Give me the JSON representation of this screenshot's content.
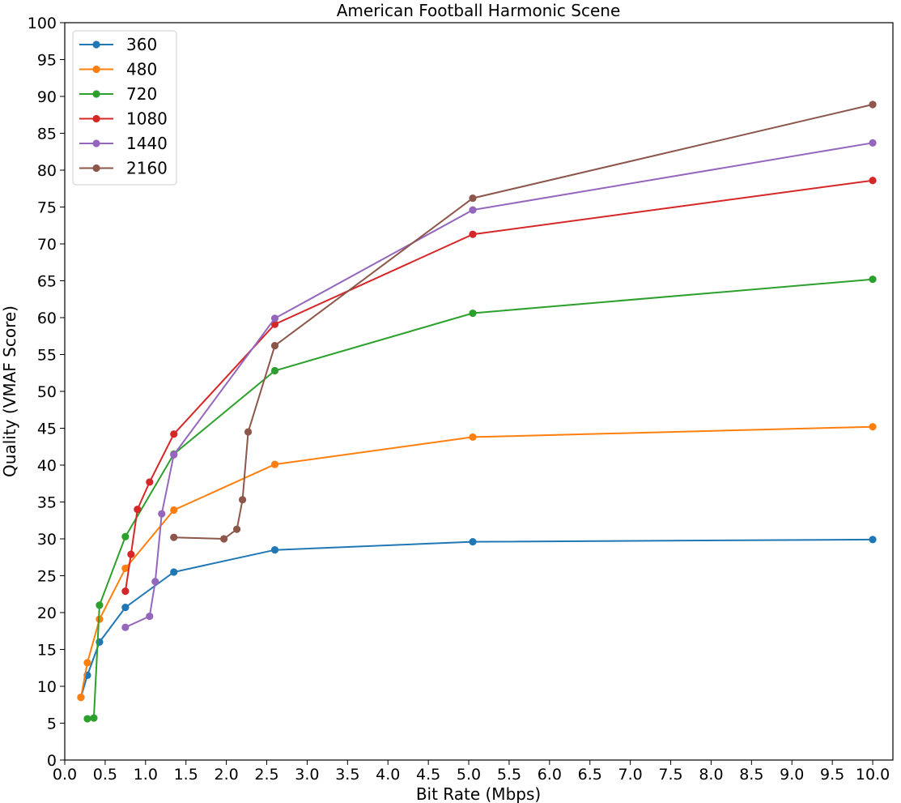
{
  "chart_data": {
    "type": "line",
    "title": "American Football Harmonic Scene",
    "xlabel": "Bit Rate (Mbps)",
    "ylabel": "Quality (VMAF Score)",
    "xlim": [
      0.0,
      10.25
    ],
    "ylim": [
      0,
      100
    ],
    "xticks": [
      "0.0",
      "0.5",
      "1.0",
      "1.5",
      "2.0",
      "2.5",
      "3.0",
      "3.5",
      "4.0",
      "4.5",
      "5.0",
      "5.5",
      "6.0",
      "6.5",
      "7.0",
      "7.5",
      "8.0",
      "8.5",
      "9.0",
      "9.5",
      "10.0"
    ],
    "yticks": [
      "0",
      "5",
      "10",
      "15",
      "20",
      "25",
      "30",
      "35",
      "40",
      "45",
      "50",
      "55",
      "60",
      "65",
      "70",
      "75",
      "80",
      "85",
      "90",
      "95",
      "100"
    ],
    "grid": false,
    "legend_position": "top-left",
    "series": [
      {
        "name": "360",
        "color": "#1f77b4",
        "x": [
          0.2,
          0.28,
          0.43,
          0.75,
          1.35,
          2.6,
          5.05,
          10.0
        ],
        "y": [
          8.5,
          11.5,
          16.0,
          20.7,
          25.5,
          28.5,
          29.6,
          29.9
        ]
      },
      {
        "name": "480",
        "color": "#ff7f0e",
        "x": [
          0.2,
          0.28,
          0.43,
          0.75,
          1.35,
          2.6,
          5.05,
          10.0
        ],
        "y": [
          8.5,
          13.2,
          19.1,
          26.0,
          33.9,
          40.1,
          43.8,
          45.2
        ]
      },
      {
        "name": "720",
        "color": "#2ca02c",
        "x": [
          0.28,
          0.36,
          0.43,
          0.75,
          1.35,
          2.6,
          5.05,
          10.0
        ],
        "y": [
          5.6,
          5.7,
          21.0,
          30.3,
          41.5,
          52.8,
          60.6,
          65.2
        ]
      },
      {
        "name": "1080",
        "color": "#d62728",
        "x": [
          0.75,
          0.82,
          0.9,
          1.05,
          1.35,
          2.6,
          5.05,
          10.0
        ],
        "y": [
          22.9,
          27.9,
          34.0,
          37.7,
          44.2,
          59.1,
          71.3,
          78.6
        ]
      },
      {
        "name": "1440",
        "color": "#9467bd",
        "x": [
          0.75,
          1.05,
          1.12,
          1.2,
          1.35,
          2.6,
          5.05,
          10.0
        ],
        "y": [
          18.0,
          19.5,
          24.2,
          33.4,
          41.4,
          59.9,
          74.6,
          83.7
        ]
      },
      {
        "name": "2160",
        "color": "#8c564b",
        "x": [
          1.35,
          1.97,
          2.13,
          2.2,
          2.27,
          2.6,
          5.05,
          10.0
        ],
        "y": [
          30.2,
          30.0,
          31.3,
          35.3,
          44.5,
          56.2,
          76.2,
          88.9
        ]
      }
    ]
  }
}
